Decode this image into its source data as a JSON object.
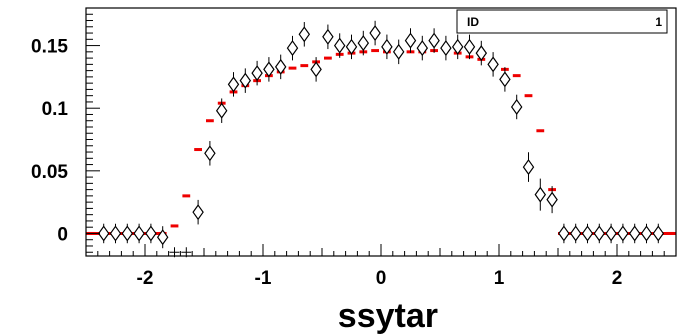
{
  "chart_data": {
    "type": "scatter",
    "title": "",
    "xlabel": "ssytar",
    "ylabel": "",
    "xlim": [
      -2.5,
      2.5
    ],
    "ylim": [
      -0.018,
      0.18
    ],
    "grid": false,
    "stats_box": {
      "label": "ID",
      "value": "1"
    },
    "x_ticks": [
      {
        "v": -2,
        "label": "-2"
      },
      {
        "v": -1,
        "label": "-1"
      },
      {
        "v": 0,
        "label": "0"
      },
      {
        "v": 1,
        "label": "1"
      },
      {
        "v": 2,
        "label": "2"
      }
    ],
    "y_ticks": [
      {
        "v": 0,
        "label": "0"
      },
      {
        "v": 0.05,
        "label": "0.05"
      },
      {
        "v": 0.1,
        "label": "0.1"
      },
      {
        "v": 0.15,
        "label": "0.15"
      }
    ],
    "bin_width": 0.1,
    "series": [
      {
        "style": "diamond-markers",
        "color": "#000000",
        "points": [
          {
            "x": -2.35,
            "y": 0,
            "err": 0.003
          },
          {
            "x": -2.25,
            "y": 0,
            "err": 0.003
          },
          {
            "x": -2.15,
            "y": 0,
            "err": 0.003
          },
          {
            "x": -2.05,
            "y": 0,
            "err": 0.003
          },
          {
            "x": -1.95,
            "y": 0,
            "err": 0.003
          },
          {
            "x": -1.85,
            "y": -0.003,
            "err": 0.004
          },
          {
            "x": -1.55,
            "y": 0.017,
            "err": 0.005
          },
          {
            "x": -1.45,
            "y": 0.064,
            "err": 0.005
          },
          {
            "x": -1.35,
            "y": 0.098,
            "err": 0.005
          },
          {
            "x": -1.25,
            "y": 0.119,
            "err": 0.005
          },
          {
            "x": -1.15,
            "y": 0.122,
            "err": 0.005
          },
          {
            "x": -1.05,
            "y": 0.128,
            "err": 0.005
          },
          {
            "x": -0.95,
            "y": 0.131,
            "err": 0.005
          },
          {
            "x": -0.85,
            "y": 0.133,
            "err": 0.005
          },
          {
            "x": -0.75,
            "y": 0.148,
            "err": 0.005
          },
          {
            "x": -0.65,
            "y": 0.159,
            "err": 0.005
          },
          {
            "x": -0.55,
            "y": 0.131,
            "err": 0.005
          },
          {
            "x": -0.45,
            "y": 0.157,
            "err": 0.005
          },
          {
            "x": -0.35,
            "y": 0.15,
            "err": 0.005
          },
          {
            "x": -0.25,
            "y": 0.149,
            "err": 0.005
          },
          {
            "x": -0.15,
            "y": 0.152,
            "err": 0.005
          },
          {
            "x": -0.05,
            "y": 0.16,
            "err": 0.005
          },
          {
            "x": 0.05,
            "y": 0.149,
            "err": 0.005
          },
          {
            "x": 0.15,
            "y": 0.145,
            "err": 0.005
          },
          {
            "x": 0.25,
            "y": 0.154,
            "err": 0.005
          },
          {
            "x": 0.35,
            "y": 0.148,
            "err": 0.005
          },
          {
            "x": 0.45,
            "y": 0.154,
            "err": 0.005
          },
          {
            "x": 0.55,
            "y": 0.148,
            "err": 0.005
          },
          {
            "x": 0.65,
            "y": 0.149,
            "err": 0.005
          },
          {
            "x": 0.75,
            "y": 0.149,
            "err": 0.005
          },
          {
            "x": 0.85,
            "y": 0.144,
            "err": 0.005
          },
          {
            "x": 0.95,
            "y": 0.135,
            "err": 0.005
          },
          {
            "x": 1.05,
            "y": 0.123,
            "err": 0.005
          },
          {
            "x": 1.15,
            "y": 0.101,
            "err": 0.005
          },
          {
            "x": 1.25,
            "y": 0.053,
            "err": 0.007
          },
          {
            "x": 1.35,
            "y": 0.031,
            "err": 0.008
          },
          {
            "x": 1.45,
            "y": 0.027,
            "err": 0.006
          },
          {
            "x": 1.55,
            "y": 0,
            "err": 0.003
          },
          {
            "x": 1.65,
            "y": 0,
            "err": 0.003
          },
          {
            "x": 1.75,
            "y": 0,
            "err": 0.003
          },
          {
            "x": 1.85,
            "y": 0,
            "err": 0.003
          },
          {
            "x": 1.95,
            "y": 0,
            "err": 0.003
          },
          {
            "x": 2.05,
            "y": 0,
            "err": 0.003
          },
          {
            "x": 2.15,
            "y": 0,
            "err": 0.003
          },
          {
            "x": 2.25,
            "y": 0,
            "err": 0.003
          },
          {
            "x": 2.35,
            "y": 0,
            "err": 0.003
          }
        ],
        "cross_points": [
          {
            "x": -1.75,
            "y": -0.015
          },
          {
            "x": -1.65,
            "y": -0.015
          }
        ]
      },
      {
        "style": "red-bin-markers",
        "color": "#ee0000",
        "bins": [
          {
            "x": -2.5,
            "y": 0
          },
          {
            "x": -2.4,
            "y": 0
          },
          {
            "x": -2.3,
            "y": 0
          },
          {
            "x": -2.2,
            "y": 0
          },
          {
            "x": -2.1,
            "y": 0
          },
          {
            "x": -2.0,
            "y": 0
          },
          {
            "x": -1.9,
            "y": 0
          },
          {
            "x": -1.8,
            "y": 0.006
          },
          {
            "x": -1.7,
            "y": 0.03
          },
          {
            "x": -1.6,
            "y": 0.067
          },
          {
            "x": -1.5,
            "y": 0.09
          },
          {
            "x": -1.4,
            "y": 0.104
          },
          {
            "x": -1.3,
            "y": 0.113
          },
          {
            "x": -1.2,
            "y": 0.118
          },
          {
            "x": -1.1,
            "y": 0.122
          },
          {
            "x": -1.0,
            "y": 0.126
          },
          {
            "x": -0.9,
            "y": 0.129
          },
          {
            "x": -0.8,
            "y": 0.132
          },
          {
            "x": -0.7,
            "y": 0.134
          },
          {
            "x": -0.6,
            "y": 0.137
          },
          {
            "x": -0.5,
            "y": 0.14
          },
          {
            "x": -0.4,
            "y": 0.143
          },
          {
            "x": -0.3,
            "y": 0.144
          },
          {
            "x": -0.2,
            "y": 0.145
          },
          {
            "x": -0.1,
            "y": 0.146
          },
          {
            "x": 0.0,
            "y": 0.145
          },
          {
            "x": 0.1,
            "y": 0.145
          },
          {
            "x": 0.2,
            "y": 0.145
          },
          {
            "x": 0.3,
            "y": 0.145
          },
          {
            "x": 0.4,
            "y": 0.146
          },
          {
            "x": 0.5,
            "y": 0.147
          },
          {
            "x": 0.6,
            "y": 0.144
          },
          {
            "x": 0.7,
            "y": 0.141
          },
          {
            "x": 0.8,
            "y": 0.139
          },
          {
            "x": 0.9,
            "y": 0.135
          },
          {
            "x": 1.0,
            "y": 0.131
          },
          {
            "x": 1.1,
            "y": 0.126
          },
          {
            "x": 1.2,
            "y": 0.11
          },
          {
            "x": 1.3,
            "y": 0.082
          },
          {
            "x": 1.4,
            "y": 0.035
          },
          {
            "x": 1.5,
            "y": 0
          },
          {
            "x": 1.6,
            "y": 0
          },
          {
            "x": 1.7,
            "y": 0
          },
          {
            "x": 1.8,
            "y": 0
          },
          {
            "x": 1.9,
            "y": 0
          },
          {
            "x": 2.0,
            "y": 0
          },
          {
            "x": 2.1,
            "y": 0
          },
          {
            "x": 2.2,
            "y": 0
          },
          {
            "x": 2.3,
            "y": 0
          },
          {
            "x": 2.4,
            "y": 0
          }
        ]
      }
    ]
  }
}
